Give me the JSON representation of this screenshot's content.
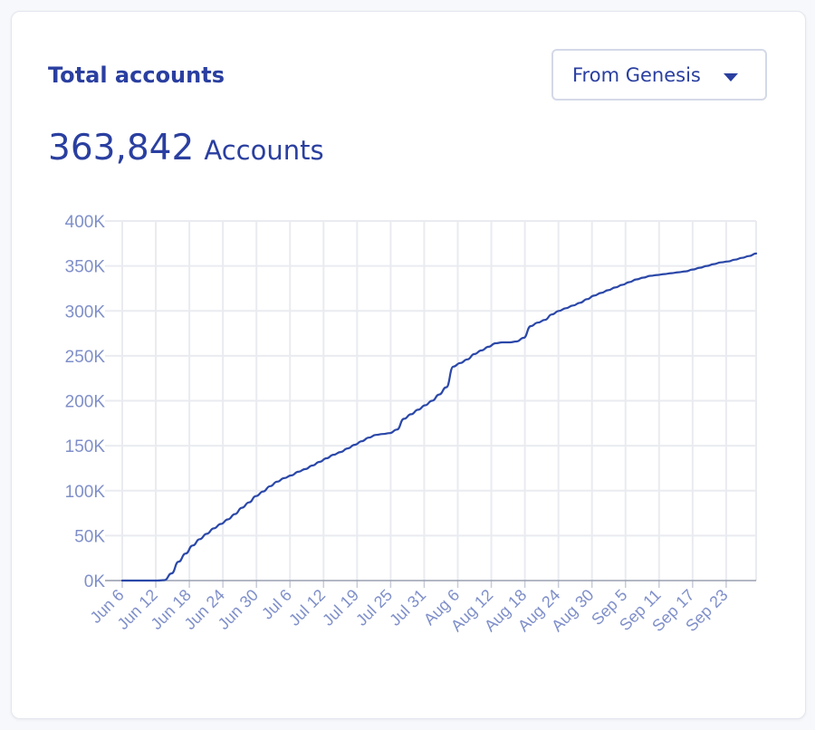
{
  "card": {
    "title": "Total accounts",
    "range_selector": {
      "selected": "From Genesis",
      "icon": "caret-down-icon"
    },
    "total_value": "363,842",
    "total_unit": "Accounts"
  },
  "colors": {
    "accent": "#2a3fa0",
    "line": "#2a47a8",
    "grid": "#e9ebf0",
    "tick": "#7f8fc9"
  },
  "chart_data": {
    "type": "line",
    "title": "",
    "xlabel": "",
    "ylabel": "",
    "grid": true,
    "legend": "none",
    "ylim": [
      0,
      400000
    ],
    "yticks": [
      0,
      50000,
      100000,
      150000,
      200000,
      250000,
      300000,
      350000,
      400000
    ],
    "ytick_labels": [
      "0K",
      "50K",
      "100K",
      "150K",
      "200K",
      "250K",
      "300K",
      "350K",
      "400K"
    ],
    "xticks": [
      "Jun 6",
      "Jun 12",
      "Jun 18",
      "Jun 24",
      "Jun 30",
      "Jul 6",
      "Jul 12",
      "Jul 19",
      "Jul 25",
      "Jul 31",
      "Aug 6",
      "Aug 12",
      "Aug 18",
      "Aug 24",
      "Aug 30",
      "Sep 5",
      "Sep 11",
      "Sep 17",
      "Sep 23"
    ],
    "series": [
      {
        "values": [
          0,
          0,
          0,
          0,
          0,
          0,
          500,
          8000,
          21000,
          30000,
          39000,
          46000,
          52000,
          58000,
          63000,
          68000,
          74000,
          81000,
          87000,
          94000,
          99000,
          105000,
          110000,
          114000,
          117000,
          121000,
          124000,
          128000,
          132000,
          136000,
          140000,
          143000,
          147000,
          151000,
          155000,
          159000,
          162000,
          163000,
          164000,
          168000,
          180000,
          185000,
          190000,
          195000,
          200000,
          207000,
          215000,
          238000,
          242000,
          246000,
          252000,
          256000,
          260000,
          264000,
          265000,
          265000,
          266000,
          270000,
          283000,
          287000,
          290000,
          296000,
          300000,
          303000,
          306000,
          309000,
          313000,
          317000,
          320000,
          323000,
          326000,
          329000,
          332000,
          335000,
          337000,
          339000,
          340000,
          341000,
          342000,
          343000,
          344000,
          346000,
          348000,
          350000,
          352000,
          354000,
          355000,
          357000,
          359000,
          361000,
          363842
        ]
      }
    ]
  }
}
